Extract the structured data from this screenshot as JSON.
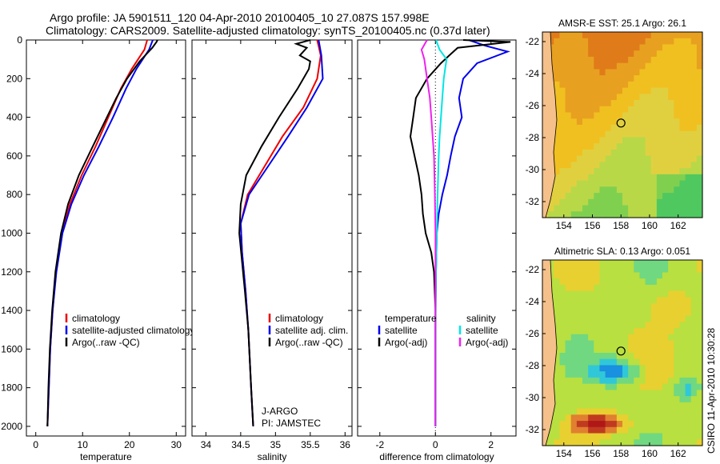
{
  "header": {
    "line1": "Argo profile: JA 5901511_120 04-Apr-2010 20100405_10 27.087S 157.998E",
    "line2": "Climatology: CARS2009. Satellite-adjusted climatology: synTS_20100405.nc (0.37d later)"
  },
  "footer_note": "CSIRO 11-Apr-2010 10:30:28",
  "colors": {
    "clim": "#ee0000",
    "sat": "#0000ee",
    "argo": "#000000",
    "salinity_sat": "#00e5e5",
    "salinity_argo": "#ee22ee"
  },
  "chart_data": [
    {
      "type": "line",
      "id": "temperature",
      "xlabel": "temperature",
      "ylabel": "",
      "xlim": [
        -2,
        32
      ],
      "ylim": [
        0,
        2050
      ],
      "xticks": [
        0,
        10,
        20,
        30
      ],
      "yticks": [
        0,
        200,
        400,
        600,
        800,
        1000,
        1200,
        1400,
        1600,
        1800,
        2000
      ],
      "legend": [
        "climatology",
        "satellite-adjusted climatology",
        "Argo(..raw -QC)"
      ],
      "series": [
        {
          "name": "climatology",
          "color": "clim",
          "points": [
            [
              23.8,
              0
            ],
            [
              23.2,
              50
            ],
            [
              20.5,
              150
            ],
            [
              18.2,
              250
            ],
            [
              15.5,
              400
            ],
            [
              12.8,
              550
            ],
            [
              9.8,
              700
            ],
            [
              7.3,
              850
            ],
            [
              5.6,
              1000
            ],
            [
              4.3,
              1200
            ],
            [
              3.6,
              1400
            ],
            [
              3.1,
              1600
            ],
            [
              2.8,
              1800
            ],
            [
              2.5,
              2000
            ]
          ]
        },
        {
          "name": "satellite-adjusted climatology",
          "color": "sat",
          "points": [
            [
              25.0,
              0
            ],
            [
              24.2,
              50
            ],
            [
              21.5,
              150
            ],
            [
              19.3,
              250
            ],
            [
              16.5,
              400
            ],
            [
              13.5,
              550
            ],
            [
              10.3,
              700
            ],
            [
              7.6,
              850
            ],
            [
              5.7,
              1000
            ],
            [
              4.4,
              1200
            ],
            [
              3.6,
              1400
            ],
            [
              3.1,
              1600
            ],
            [
              2.8,
              1800
            ],
            [
              2.5,
              2000
            ]
          ]
        },
        {
          "name": "Argo(..raw -QC)",
          "color": "argo",
          "points": [
            [
              26.0,
              0
            ],
            [
              25.8,
              10
            ],
            [
              24.9,
              40
            ],
            [
              22.2,
              110
            ],
            [
              19.5,
              200
            ],
            [
              17.2,
              300
            ],
            [
              14.8,
              420
            ],
            [
              12.0,
              560
            ],
            [
              9.2,
              700
            ],
            [
              6.9,
              850
            ],
            [
              5.4,
              1000
            ],
            [
              4.2,
              1200
            ],
            [
              3.5,
              1400
            ],
            [
              3.0,
              1600
            ],
            [
              2.7,
              1800
            ],
            [
              2.5,
              2000
            ]
          ]
        }
      ]
    },
    {
      "type": "line",
      "id": "salinity",
      "xlabel": "salinity",
      "xlim": [
        33.8,
        36.1
      ],
      "ylim": [
        0,
        2050
      ],
      "xticks": [
        34,
        34.5,
        35,
        35.5,
        36
      ],
      "legend": [
        "climatology",
        "satellite adj. clim.",
        "Argo(..raw -QC)"
      ],
      "annotation": [
        "J-ARGO",
        "PI: JAMSTEC"
      ],
      "series": [
        {
          "name": "climatology",
          "color": "clim",
          "points": [
            [
              35.6,
              0
            ],
            [
              35.65,
              80
            ],
            [
              35.6,
              200
            ],
            [
              35.4,
              350
            ],
            [
              35.1,
              500
            ],
            [
              34.85,
              650
            ],
            [
              34.6,
              800
            ],
            [
              34.5,
              950
            ],
            [
              34.52,
              1100
            ],
            [
              34.57,
              1300
            ],
            [
              34.61,
              1500
            ],
            [
              34.65,
              1800
            ],
            [
              34.68,
              2000
            ]
          ]
        },
        {
          "name": "satellite adj. clim.",
          "color": "sat",
          "points": [
            [
              35.62,
              0
            ],
            [
              35.66,
              80
            ],
            [
              35.68,
              200
            ],
            [
              35.45,
              350
            ],
            [
              35.18,
              500
            ],
            [
              34.9,
              650
            ],
            [
              34.62,
              800
            ],
            [
              34.5,
              950
            ],
            [
              34.52,
              1100
            ],
            [
              34.57,
              1300
            ],
            [
              34.61,
              1500
            ],
            [
              34.65,
              1800
            ],
            [
              34.68,
              2000
            ]
          ]
        },
        {
          "name": "Argo(..raw -QC)",
          "color": "argo",
          "points": [
            [
              35.5,
              0
            ],
            [
              35.3,
              20
            ],
            [
              35.45,
              40
            ],
            [
              35.35,
              80
            ],
            [
              35.5,
              110
            ],
            [
              35.48,
              150
            ],
            [
              35.32,
              250
            ],
            [
              35.05,
              400
            ],
            [
              34.8,
              550
            ],
            [
              34.58,
              700
            ],
            [
              34.5,
              850
            ],
            [
              34.48,
              1000
            ],
            [
              34.52,
              1150
            ],
            [
              34.56,
              1300
            ],
            [
              34.61,
              1500
            ],
            [
              34.65,
              1800
            ],
            [
              34.68,
              2000
            ]
          ]
        }
      ]
    },
    {
      "type": "line",
      "id": "difference",
      "xlabel": "difference from climatology",
      "xlim": [
        -2.8,
        2.9
      ],
      "ylim": [
        0,
        2050
      ],
      "xticks": [
        -2,
        0,
        2
      ],
      "legend_left": {
        "title": "temperature",
        "items": [
          "satellite",
          "Argo(-adj)"
        ]
      },
      "legend_right": {
        "title": "salinity",
        "items": [
          "satellite",
          "Argo(-adj)"
        ]
      },
      "series": [
        {
          "name": "temperature satellite",
          "color": "sat",
          "points": [
            [
              1.2,
              0
            ],
            [
              1.8,
              30
            ],
            [
              2.6,
              60
            ],
            [
              1.5,
              120
            ],
            [
              1.0,
              200
            ],
            [
              0.85,
              300
            ],
            [
              0.95,
              400
            ],
            [
              0.7,
              500
            ],
            [
              0.55,
              600
            ],
            [
              0.42,
              700
            ],
            [
              0.25,
              800
            ],
            [
              0.12,
              900
            ],
            [
              0.05,
              1000
            ],
            [
              0.02,
              1200
            ],
            [
              0,
              1500
            ],
            [
              0,
              2000
            ]
          ]
        },
        {
          "name": "temperature Argo(-adj)",
          "color": "argo",
          "points": [
            [
              1.0,
              0
            ],
            [
              2.7,
              10
            ],
            [
              0.8,
              40
            ],
            [
              0.5,
              80
            ],
            [
              0.2,
              120
            ],
            [
              -0.3,
              200
            ],
            [
              -0.7,
              300
            ],
            [
              -0.8,
              400
            ],
            [
              -0.9,
              500
            ],
            [
              -0.75,
              600
            ],
            [
              -0.6,
              700
            ],
            [
              -0.5,
              800
            ],
            [
              -0.45,
              900
            ],
            [
              -0.35,
              1000
            ],
            [
              -0.15,
              1100
            ],
            [
              -0.05,
              1200
            ],
            [
              0,
              1400
            ],
            [
              0,
              2000
            ]
          ]
        },
        {
          "name": "salinity satellite",
          "color": "salinity_sat",
          "points": [
            [
              0.02,
              0
            ],
            [
              0.15,
              50
            ],
            [
              0.4,
              100
            ],
            [
              0.35,
              150
            ],
            [
              0.3,
              200
            ],
            [
              0.25,
              300
            ],
            [
              0.2,
              400
            ],
            [
              0.15,
              500
            ],
            [
              0.12,
              600
            ],
            [
              0.1,
              700
            ],
            [
              0.08,
              800
            ],
            [
              0.05,
              1000
            ],
            [
              0.02,
              1200
            ],
            [
              0,
              1400
            ],
            [
              0,
              2000
            ]
          ]
        },
        {
          "name": "salinity Argo(-adj)",
          "color": "salinity_argo",
          "points": [
            [
              -0.3,
              0
            ],
            [
              -0.5,
              50
            ],
            [
              -0.4,
              100
            ],
            [
              -0.3,
              200
            ],
            [
              -0.2,
              300
            ],
            [
              -0.15,
              400
            ],
            [
              -0.1,
              500
            ],
            [
              -0.05,
              600
            ],
            [
              -0.02,
              800
            ],
            [
              0,
              1000
            ],
            [
              0,
              2000
            ]
          ]
        }
      ]
    },
    {
      "type": "heatmap",
      "id": "sst_map",
      "title": "AMSR-E SST: 25.1  Argo: 26.1",
      "xlim": [
        152.5,
        163.7
      ],
      "ylim": [
        -33.0,
        -21.4
      ],
      "xticks": [
        154,
        156,
        158,
        160,
        162
      ],
      "yticks": [
        -22,
        -24,
        -26,
        -28,
        -30,
        -32
      ],
      "float_position": {
        "lon": 158.0,
        "lat": -27.09
      },
      "palette": [
        "#d2691e",
        "#e07b1a",
        "#e8a020",
        "#f0c020",
        "#e0d040",
        "#b8d848",
        "#80d050",
        "#50c860"
      ]
    },
    {
      "type": "heatmap",
      "id": "sla_map",
      "title": "Altimetric SLA: 0.13  Argo: 0.051",
      "xlim": [
        152.5,
        163.7
      ],
      "ylim": [
        -33.0,
        -21.4
      ],
      "xticks": [
        154,
        156,
        158,
        160,
        162
      ],
      "yticks": [
        -22,
        -24,
        -26,
        -28,
        -30,
        -32
      ],
      "float_position": {
        "lon": 158.0,
        "lat": -27.09
      },
      "palette": [
        "#1a90e0",
        "#30c8d8",
        "#70d880",
        "#b8e040",
        "#e8d030",
        "#e08030",
        "#c03a20",
        "#b01818"
      ]
    }
  ]
}
